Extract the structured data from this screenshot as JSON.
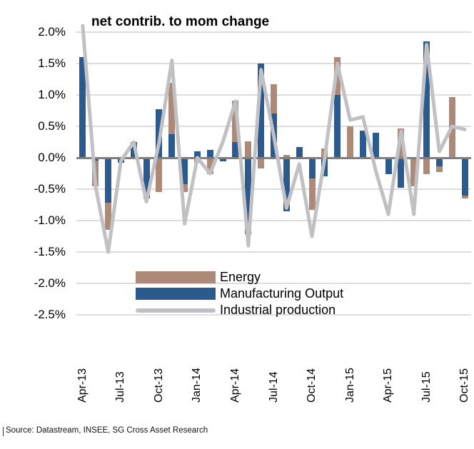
{
  "title": "net contrib. to mom change",
  "source": "Source: Datastream, INSEE, SG Cross Asset Research",
  "colors": {
    "energy": "#ad8a78",
    "manufacturing": "#2a5a8e",
    "industrial_line": "#c1c0c5",
    "gridline": "#dcdcdc",
    "zero_axis": "#7f7f7f",
    "text": "#000000"
  },
  "chart_data": {
    "type": "bar",
    "subtype": "stacked-bars-with-line-overlay",
    "title": "net contrib. to mom change",
    "xlabel": "",
    "ylabel": "",
    "ylim": [
      -2.5,
      2.0
    ],
    "ytick_step": 0.5,
    "grid": true,
    "legend_position": "inside-bottom-center",
    "y_tick_values": [
      2.0,
      1.5,
      1.0,
      0.5,
      0.0,
      -0.5,
      -1.0,
      -1.5,
      -2.0,
      -2.5
    ],
    "y_tick_labels": [
      "2.0%",
      "1.5%",
      "1.0%",
      "0.5%",
      "0.0%",
      "-0.5%",
      "-1.0%",
      "-1.5%",
      "-2.0%",
      "-2.5%"
    ],
    "x_tick_labels": [
      "Apr-13",
      "Jul-13",
      "Oct-13",
      "Jan-14",
      "Apr-14",
      "Jul-14",
      "Oct-14",
      "Jan-15",
      "Apr-15",
      "Jul-15",
      "Oct-15"
    ],
    "x_tick_every": 3,
    "categories": [
      "Apr-13",
      "May-13",
      "Jun-13",
      "Jul-13",
      "Aug-13",
      "Sep-13",
      "Oct-13",
      "Nov-13",
      "Dec-13",
      "Jan-14",
      "Feb-14",
      "Mar-14",
      "Apr-14",
      "May-14",
      "Jun-14",
      "Jul-14",
      "Aug-14",
      "Sep-14",
      "Oct-14",
      "Nov-14",
      "Dec-14",
      "Jan-15",
      "Feb-15",
      "Mar-15",
      "Apr-15",
      "May-15",
      "Jun-15",
      "Jul-15",
      "Aug-15",
      "Sep-15",
      "Oct-15"
    ],
    "series": [
      {
        "name": "Energy",
        "type": "bar",
        "color": "#ad8a78",
        "values": [
          0,
          -0.4,
          -0.43,
          0,
          0,
          0,
          -0.55,
          0.82,
          -0.12,
          -0.08,
          -0.26,
          0,
          0.66,
          0.26,
          -0.17,
          0.46,
          0.05,
          0,
          -0.5,
          0.15,
          0.6,
          0.5,
          0,
          0,
          0,
          0.47,
          -0.46,
          -0.26,
          -0.09,
          0.97,
          -0.05
        ]
      },
      {
        "name": "Manufacturing Output",
        "type": "bar",
        "color": "#2a5a8e",
        "values": [
          1.6,
          -0.05,
          -0.72,
          -0.08,
          0.25,
          -0.65,
          0.77,
          0.37,
          -0.42,
          0.1,
          0.12,
          -0.06,
          0.25,
          -1.22,
          1.5,
          0.71,
          -0.85,
          0.17,
          -0.33,
          -0.3,
          1.0,
          0,
          0.43,
          0.4,
          -0.26,
          -0.48,
          0,
          1.85,
          -0.14,
          0,
          -0.6
        ]
      },
      {
        "name": "Industrial production",
        "type": "line",
        "color": "#c1c0c5",
        "values": [
          2.1,
          -0.45,
          -1.5,
          -0.05,
          0.25,
          -0.7,
          0.25,
          1.55,
          -1.05,
          0.0,
          -0.25,
          0.25,
          0.9,
          -1.4,
          1.4,
          0.35,
          -0.8,
          -0.1,
          -1.25,
          0.0,
          1.5,
          0.6,
          0.65,
          -0.2,
          -0.9,
          0.42,
          -0.9,
          1.8,
          0.1,
          0.5,
          0.45
        ]
      }
    ]
  }
}
